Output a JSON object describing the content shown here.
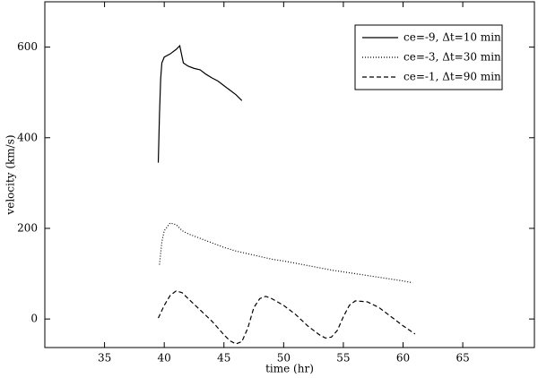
{
  "chart_data": {
    "type": "line",
    "xlabel": "time (hr)",
    "ylabel": "velocity (km/s)",
    "xlim": [
      30,
      71
    ],
    "xticks": [
      35,
      40,
      45,
      50,
      55,
      60,
      65
    ],
    "ylim": [
      -63,
      700
    ],
    "yticks": [
      0,
      200,
      400,
      600
    ],
    "legend": "upper right",
    "series": [
      {
        "name": "ce=-9, Δt=10 min",
        "color": "#000000",
        "dash": "solid",
        "x": [
          39.5,
          39.6,
          39.7,
          39.8,
          40,
          40.5,
          41,
          41.3,
          41.6,
          42,
          42.5,
          43,
          43.5,
          44,
          44.5,
          45,
          45.5,
          46,
          46.5
        ],
        "values": [
          345,
          450,
          530,
          565,
          578,
          585,
          595,
          603,
          565,
          558,
          553,
          550,
          540,
          532,
          525,
          515,
          505,
          495,
          482
        ]
      },
      {
        "name": "ce=-3, Δt=30 min",
        "color": "#000000",
        "dash": "dotted",
        "x": [
          39.6,
          39.8,
          40,
          40.5,
          41,
          41.5,
          42,
          43,
          44,
          45,
          46,
          47,
          48,
          49,
          50,
          51,
          52,
          53,
          54,
          55,
          56,
          57,
          58,
          59,
          60,
          60.8
        ],
        "values": [
          120,
          170,
          195,
          212,
          208,
          195,
          188,
          178,
          168,
          158,
          150,
          144,
          138,
          132,
          128,
          123,
          118,
          113,
          108,
          104,
          100,
          96,
          92,
          88,
          84,
          80
        ]
      },
      {
        "name": "ce=-1, Δt=90 min",
        "color": "#000000",
        "dash": "dashed",
        "x": [
          39.5,
          40,
          40.5,
          41,
          41.5,
          42,
          43,
          44,
          45,
          45.5,
          46,
          46.5,
          47,
          47.5,
          48,
          48.5,
          49,
          50,
          51,
          52,
          53,
          53.5,
          54,
          54.5,
          55,
          55.5,
          56,
          57,
          58,
          59,
          60,
          61
        ],
        "values": [
          2,
          30,
          52,
          62,
          58,
          45,
          20,
          -5,
          -35,
          -48,
          -55,
          -50,
          -20,
          25,
          45,
          50,
          45,
          30,
          10,
          -15,
          -35,
          -42,
          -40,
          -25,
          5,
          30,
          40,
          38,
          25,
          5,
          -15,
          -33
        ]
      }
    ]
  }
}
